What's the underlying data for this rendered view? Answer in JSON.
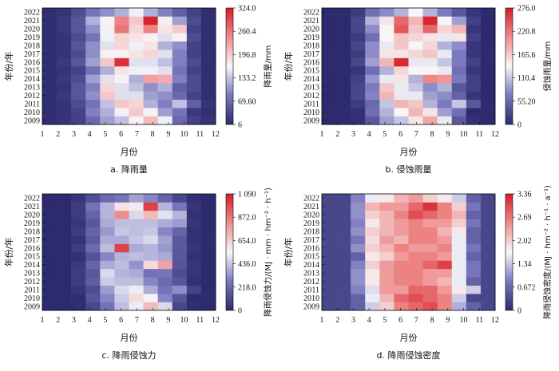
{
  "chart_data": [
    {
      "type": "heatmap",
      "caption": "a.  降雨量",
      "xlabel": "月份",
      "ylabel": "年份/年",
      "colorbar_label": "降雨量/mm",
      "categories": [
        "1",
        "2",
        "3",
        "4",
        "5",
        "6",
        "7",
        "8",
        "9",
        "10",
        "11",
        "12"
      ],
      "years": [
        "2009",
        "2010",
        "2011",
        "2012",
        "2013",
        "2014",
        "2015",
        "2016",
        "2017",
        "2018",
        "2019",
        "2020",
        "2021",
        "2022"
      ],
      "colorbar_ticks": [
        "6",
        "69.60",
        "133.2",
        "196.8",
        "260.4",
        "324.0"
      ],
      "vmin": 6,
      "vmax": 324,
      "values": [
        [
          10,
          15,
          30,
          70,
          110,
          130,
          170,
          210,
          160,
          70,
          30,
          15
        ],
        [
          10,
          15,
          30,
          90,
          120,
          160,
          200,
          170,
          110,
          80,
          20,
          10
        ],
        [
          10,
          15,
          40,
          80,
          130,
          200,
          190,
          120,
          90,
          130,
          60,
          15
        ],
        [
          10,
          20,
          50,
          100,
          200,
          150,
          150,
          110,
          100,
          70,
          30,
          10
        ],
        [
          10,
          15,
          50,
          90,
          190,
          150,
          130,
          100,
          120,
          60,
          40,
          10
        ],
        [
          10,
          20,
          40,
          110,
          150,
          170,
          120,
          230,
          220,
          90,
          40,
          10
        ],
        [
          10,
          15,
          30,
          80,
          120,
          180,
          160,
          160,
          150,
          80,
          30,
          10
        ],
        [
          10,
          20,
          50,
          110,
          200,
          310,
          150,
          150,
          130,
          90,
          40,
          10
        ],
        [
          10,
          15,
          40,
          100,
          170,
          170,
          180,
          190,
          150,
          90,
          30,
          10
        ],
        [
          10,
          15,
          50,
          100,
          150,
          190,
          160,
          180,
          120,
          100,
          30,
          10
        ],
        [
          10,
          15,
          40,
          80,
          160,
          190,
          180,
          170,
          150,
          170,
          40,
          10
        ],
        [
          10,
          20,
          50,
          100,
          160,
          260,
          190,
          250,
          180,
          200,
          30,
          10
        ],
        [
          10,
          20,
          50,
          120,
          170,
          250,
          200,
          320,
          160,
          110,
          40,
          10
        ],
        [
          10,
          15,
          40,
          80,
          100,
          120,
          160,
          120,
          90,
          60,
          30,
          10
        ]
      ]
    },
    {
      "type": "heatmap",
      "caption": "b.  侵蚀雨量",
      "xlabel": "月份",
      "ylabel": "年份/年",
      "colorbar_label": "侵蚀雨量/mm",
      "categories": [
        "1",
        "2",
        "3",
        "4",
        "5",
        "6",
        "7",
        "8",
        "9",
        "10",
        "11",
        "12"
      ],
      "years": [
        "2009",
        "2010",
        "2011",
        "2012",
        "2013",
        "2014",
        "2015",
        "2016",
        "2017",
        "2018",
        "2019",
        "2020",
        "2021",
        "2022"
      ],
      "colorbar_ticks": [
        "0",
        "55.20",
        "110.4",
        "165.6",
        "220.8",
        "276.0"
      ],
      "vmin": 0,
      "vmax": 276,
      "values": [
        [
          0,
          0,
          5,
          40,
          90,
          110,
          150,
          190,
          130,
          40,
          5,
          0
        ],
        [
          0,
          0,
          5,
          60,
          100,
          140,
          180,
          150,
          90,
          60,
          0,
          0
        ],
        [
          0,
          0,
          15,
          55,
          110,
          180,
          170,
          100,
          70,
          110,
          40,
          0
        ],
        [
          0,
          0,
          25,
          75,
          180,
          130,
          130,
          90,
          80,
          50,
          10,
          0
        ],
        [
          0,
          0,
          25,
          70,
          170,
          130,
          110,
          80,
          100,
          40,
          20,
          0
        ],
        [
          0,
          0,
          20,
          85,
          130,
          150,
          100,
          210,
          200,
          70,
          20,
          0
        ],
        [
          0,
          0,
          10,
          60,
          100,
          160,
          140,
          140,
          130,
          60,
          10,
          0
        ],
        [
          0,
          0,
          25,
          90,
          180,
          270,
          130,
          130,
          110,
          70,
          20,
          0
        ],
        [
          0,
          0,
          15,
          80,
          150,
          150,
          160,
          170,
          130,
          70,
          10,
          0
        ],
        [
          0,
          0,
          25,
          80,
          130,
          170,
          140,
          160,
          100,
          80,
          10,
          0
        ],
        [
          0,
          0,
          15,
          60,
          140,
          170,
          160,
          150,
          130,
          150,
          20,
          0
        ],
        [
          0,
          0,
          25,
          80,
          140,
          240,
          170,
          230,
          160,
          180,
          10,
          0
        ],
        [
          0,
          0,
          25,
          100,
          150,
          230,
          180,
          270,
          140,
          90,
          20,
          0
        ],
        [
          0,
          0,
          15,
          60,
          80,
          100,
          140,
          100,
          70,
          40,
          10,
          0
        ]
      ]
    },
    {
      "type": "heatmap",
      "caption": "c.  降雨侵蚀力",
      "xlabel": "月份",
      "ylabel": "年份/年",
      "colorbar_label": "降雨侵蚀力/(MJ · mm · hm⁻² · h⁻¹)",
      "categories": [
        "1",
        "2",
        "3",
        "4",
        "5",
        "6",
        "7",
        "8",
        "9",
        "10",
        "11",
        "12"
      ],
      "years": [
        "2009",
        "2010",
        "2011",
        "2012",
        "2013",
        "2014",
        "2015",
        "2016",
        "2017",
        "2018",
        "2019",
        "2020",
        "2021",
        "2022"
      ],
      "colorbar_ticks": [
        "0",
        "218.0",
        "436.0",
        "654.0",
        "872.0",
        "1 090"
      ],
      "vmin": 0,
      "vmax": 1090,
      "values": [
        [
          0,
          0,
          10,
          100,
          250,
          420,
          520,
          700,
          480,
          100,
          10,
          0
        ],
        [
          0,
          0,
          10,
          150,
          300,
          450,
          620,
          560,
          300,
          150,
          0,
          0
        ],
        [
          0,
          0,
          40,
          120,
          350,
          480,
          520,
          380,
          250,
          320,
          80,
          0
        ],
        [
          0,
          0,
          60,
          180,
          450,
          420,
          420,
          300,
          220,
          150,
          20,
          0
        ],
        [
          0,
          0,
          60,
          160,
          480,
          400,
          380,
          250,
          260,
          120,
          40,
          0
        ],
        [
          0,
          0,
          50,
          200,
          380,
          420,
          330,
          620,
          760,
          150,
          40,
          0
        ],
        [
          0,
          0,
          20,
          140,
          300,
          400,
          420,
          400,
          380,
          160,
          20,
          0
        ],
        [
          0,
          0,
          60,
          220,
          420,
          1000,
          380,
          400,
          340,
          160,
          40,
          0
        ],
        [
          0,
          0,
          30,
          170,
          380,
          380,
          440,
          480,
          360,
          160,
          20,
          0
        ],
        [
          0,
          0,
          60,
          200,
          340,
          440,
          420,
          440,
          300,
          200,
          20,
          0
        ],
        [
          0,
          0,
          40,
          160,
          380,
          420,
          420,
          420,
          380,
          350,
          40,
          0
        ],
        [
          0,
          0,
          60,
          200,
          400,
          820,
          480,
          700,
          500,
          400,
          20,
          0
        ],
        [
          0,
          0,
          60,
          250,
          400,
          600,
          520,
          1000,
          400,
          260,
          40,
          0
        ],
        [
          0,
          0,
          40,
          130,
          220,
          260,
          360,
          300,
          200,
          100,
          20,
          0
        ]
      ]
    },
    {
      "type": "heatmap",
      "caption": "d.  降雨侵蚀密度",
      "xlabel": "月份",
      "ylabel": "年份/年",
      "colorbar_label": "降雨侵蚀密度/(MJ · hm⁻² · h⁻¹ · a⁻¹)",
      "categories": [
        "1",
        "2",
        "3",
        "4",
        "5",
        "6",
        "7",
        "8",
        "9",
        "10",
        "11",
        "12"
      ],
      "years": [
        "2009",
        "2010",
        "2011",
        "2012",
        "2013",
        "2014",
        "2015",
        "2016",
        "2017",
        "2018",
        "2019",
        "2020",
        "2021",
        "2022"
      ],
      "colorbar_ticks": [
        "0",
        "0.672",
        "1.34",
        "2.02",
        "2.69",
        "3.36"
      ],
      "vmin": 0,
      "vmax": 3.36,
      "values": [
        [
          0.3,
          0.3,
          0.6,
          1.4,
          2.0,
          2.6,
          2.8,
          3.0,
          2.6,
          1.2,
          0.6,
          0.3
        ],
        [
          0.3,
          0.3,
          0.6,
          1.6,
          2.2,
          2.8,
          3.0,
          2.8,
          2.6,
          1.4,
          0.3,
          0.3
        ],
        [
          0.3,
          0.3,
          0.9,
          1.5,
          2.4,
          2.4,
          2.8,
          2.8,
          2.4,
          1.8,
          1.4,
          0.3
        ],
        [
          0.3,
          0.3,
          1.0,
          1.8,
          2.4,
          2.6,
          2.6,
          2.4,
          2.2,
          1.6,
          0.6,
          0.3
        ],
        [
          0.3,
          0.3,
          1.0,
          1.8,
          2.4,
          2.6,
          2.6,
          2.4,
          2.4,
          1.6,
          0.8,
          0.3
        ],
        [
          0.3,
          0.3,
          0.9,
          2.0,
          2.4,
          2.6,
          2.6,
          2.8,
          3.1,
          1.6,
          0.8,
          0.3
        ],
        [
          0.3,
          0.3,
          0.6,
          1.8,
          2.0,
          2.4,
          2.6,
          2.6,
          2.4,
          1.6,
          0.6,
          0.3
        ],
        [
          0.3,
          0.3,
          1.0,
          2.0,
          2.2,
          2.6,
          2.4,
          2.4,
          2.6,
          1.6,
          0.8,
          0.3
        ],
        [
          0.3,
          0.3,
          0.8,
          1.9,
          2.4,
          2.2,
          2.6,
          2.6,
          2.4,
          1.6,
          0.6,
          0.3
        ],
        [
          0.3,
          0.3,
          1.0,
          2.0,
          2.2,
          2.4,
          2.6,
          2.6,
          2.2,
          1.8,
          0.6,
          0.3
        ],
        [
          0.3,
          0.3,
          0.9,
          1.8,
          2.2,
          2.4,
          2.6,
          2.4,
          2.4,
          2.0,
          0.8,
          0.3
        ],
        [
          0.3,
          0.3,
          1.0,
          2.0,
          2.2,
          2.6,
          3.0,
          2.8,
          2.6,
          2.2,
          0.6,
          0.3
        ],
        [
          0.3,
          0.3,
          1.0,
          2.2,
          2.4,
          2.4,
          2.8,
          3.2,
          2.6,
          2.0,
          0.8,
          0.3
        ],
        [
          0.3,
          0.3,
          0.9,
          1.6,
          1.8,
          2.2,
          2.4,
          2.0,
          1.8,
          1.4,
          0.6,
          0.3
        ]
      ]
    }
  ]
}
